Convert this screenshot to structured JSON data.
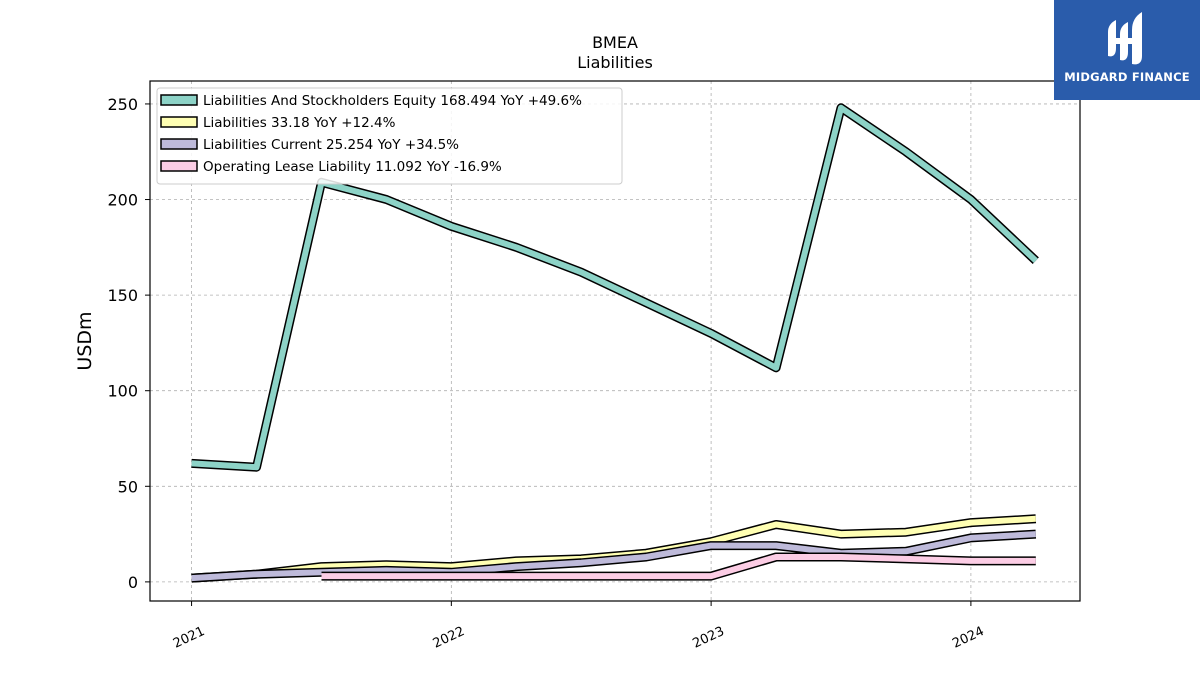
{
  "brand": {
    "name": "MIDGARD FINANCE",
    "logo_color": "#2a5cab"
  },
  "chart_data": {
    "type": "line",
    "title": "BMEA",
    "subtitle": "Liabilities",
    "ylabel": "USDm",
    "xlabel": "",
    "ylim": [
      -10,
      262
    ],
    "xlim": [
      2020.84,
      2024.42
    ],
    "yticks": [
      0,
      50,
      100,
      150,
      200,
      250
    ],
    "xticks": [
      {
        "label": "2021",
        "value": 2021.0
      },
      {
        "label": "2022",
        "value": 2022.0
      },
      {
        "label": "2023",
        "value": 2023.0
      },
      {
        "label": "2024",
        "value": 2024.0
      }
    ],
    "grid": true,
    "legend_position": "top-left",
    "series": [
      {
        "name": "Liabilities And Stockholders Equity",
        "legend": "Liabilities And Stockholders Equity  168.494 YoY +49.6%",
        "color": "#8dd3c7",
        "x": [
          2021.0,
          2021.25,
          2021.5,
          2021.75,
          2022.0,
          2022.25,
          2022.5,
          2022.75,
          2023.0,
          2023.25,
          2023.5,
          2023.75,
          2024.0,
          2024.25
        ],
        "y": [
          62,
          60,
          209,
          200,
          186,
          175,
          162,
          146,
          130,
          112,
          248,
          225,
          200,
          168
        ]
      },
      {
        "name": "Liabilities",
        "legend": "Liabilities  33.18 YoY +12.4%",
        "color": "#ffffb3",
        "x": [
          2021.0,
          2021.25,
          2021.5,
          2021.75,
          2022.0,
          2022.25,
          2022.5,
          2022.75,
          2023.0,
          2023.25,
          2023.5,
          2023.75,
          2024.0,
          2024.25
        ],
        "y": [
          2,
          4,
          8,
          9,
          8,
          11,
          12,
          15,
          21,
          30,
          25,
          26,
          31,
          33
        ]
      },
      {
        "name": "Liabilities Current",
        "legend": "Liabilities Current  25.254 YoY +34.5%",
        "color": "#bebada",
        "x": [
          2021.0,
          2021.25,
          2021.5,
          2021.75,
          2022.0,
          2022.25,
          2022.5,
          2022.75,
          2023.0,
          2023.25,
          2023.5,
          2023.75,
          2024.0,
          2024.25
        ],
        "y": [
          2,
          4,
          5,
          6,
          5,
          8,
          10,
          13,
          19,
          19,
          15,
          16,
          23,
          25
        ]
      },
      {
        "name": "Operating Lease Liability",
        "legend": "Operating Lease Liability  11.092 YoY -16.9%",
        "color": "#fccde5",
        "x": [
          2021.5,
          2021.75,
          2022.0,
          2022.25,
          2022.5,
          2022.75,
          2023.0,
          2023.25,
          2023.5,
          2023.75,
          2024.0,
          2024.25
        ],
        "y": [
          3,
          3,
          3,
          3,
          3,
          3,
          3,
          13,
          13,
          12,
          11,
          11
        ]
      }
    ]
  }
}
